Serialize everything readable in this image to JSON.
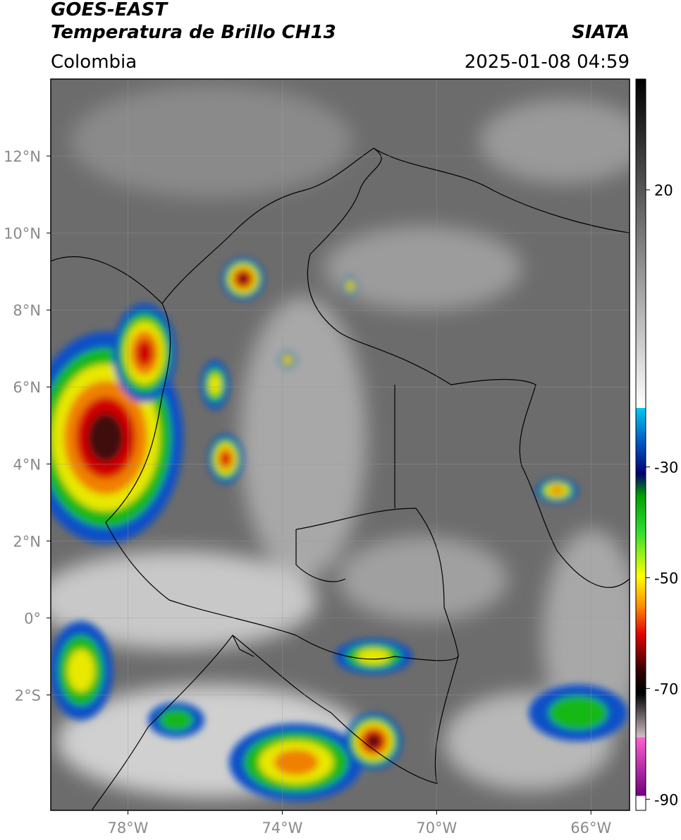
{
  "header": {
    "title": "GOES-EAST",
    "subtitle": "Temperatura de Brillo CH13",
    "source": "SIATA",
    "region": "Colombia",
    "datetime": "2025-01-08 04:59"
  },
  "map": {
    "lonlim": [
      -80,
      -65
    ],
    "latlim": [
      -5,
      14
    ],
    "xticks": [
      {
        "value": -78,
        "label": "78°W"
      },
      {
        "value": -74,
        "label": "74°W"
      },
      {
        "value": -70,
        "label": "70°W"
      },
      {
        "value": -66,
        "label": "66°W"
      }
    ],
    "yticks": [
      {
        "value": 12,
        "label": "12°N"
      },
      {
        "value": 10,
        "label": "10°N"
      },
      {
        "value": 8,
        "label": "8°N"
      },
      {
        "value": 6,
        "label": "6°N"
      },
      {
        "value": 4,
        "label": "4°N"
      },
      {
        "value": 2,
        "label": "2°N"
      },
      {
        "value": 0,
        "label": "0°"
      },
      {
        "value": -2,
        "label": "2°S"
      }
    ]
  },
  "colorbar": {
    "range": [
      -92,
      40
    ],
    "ticks": [
      20,
      -30,
      -50,
      -70,
      -90
    ]
  }
}
